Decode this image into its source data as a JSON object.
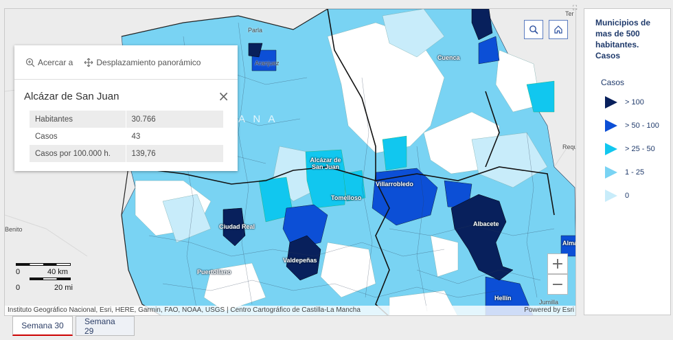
{
  "map": {
    "place_labels": [
      "Parla",
      "Aranjuez",
      "Cuenca",
      "Tomelloso",
      "Villarrobledo",
      "Ciudad Real",
      "Valdepeñas",
      "Albacete",
      "Puertollano",
      "Hellín",
      "Alcázar de San Juan",
      "Alma",
      "Benito",
      "Requ",
      "Jumilla",
      "Ter"
    ],
    "watermark": "A N A",
    "attribution": "Instituto Geográfico Nacional, Esri, HERE, Garmin, FAO, NOAA, USGS | Centro Cartográfico de Castilla-La Mancha",
    "powered_by": "Powered by Esri",
    "scale": {
      "km": "40 km",
      "mi": "20 mi",
      "zero": "0"
    }
  },
  "popup": {
    "actions": [
      {
        "label": "Acercar a",
        "icon": "zoom-in-icon"
      },
      {
        "label": "Desplazamiento panorámico",
        "icon": "pan-icon"
      }
    ],
    "title": "Alcázar de San Juan",
    "rows": [
      {
        "key": "Habitantes",
        "value": "30.766"
      },
      {
        "key": "Casos",
        "value": "43"
      },
      {
        "key": "Casos por 100.000 h.",
        "value": "139,76"
      }
    ]
  },
  "controls": {
    "search_icon": "search-icon",
    "home_icon": "home-icon",
    "zoom_in": "+",
    "zoom_out": "−"
  },
  "tabs": [
    {
      "label": "Semana 30",
      "active": true
    },
    {
      "label": "Semana 29",
      "active": false
    }
  ],
  "legend": {
    "title": "Municipios de mas de 500 habitantes. Casos",
    "subtitle": "Casos",
    "items": [
      {
        "label": "> 100",
        "color": "#08205c"
      },
      {
        "label": "> 50 - 100",
        "color": "#0c4fd6"
      },
      {
        "label": "> 25 - 50",
        "color": "#11c7ef"
      },
      {
        "label": "1 - 25",
        "color": "#79d3f3"
      },
      {
        "label": "0",
        "color": "#c8ecfa"
      }
    ]
  },
  "colors": {
    "c0": "#c8ecfa",
    "c1": "#79d3f3",
    "c2": "#11c7ef",
    "c3": "#0c4fd6",
    "c4": "#08205c"
  }
}
